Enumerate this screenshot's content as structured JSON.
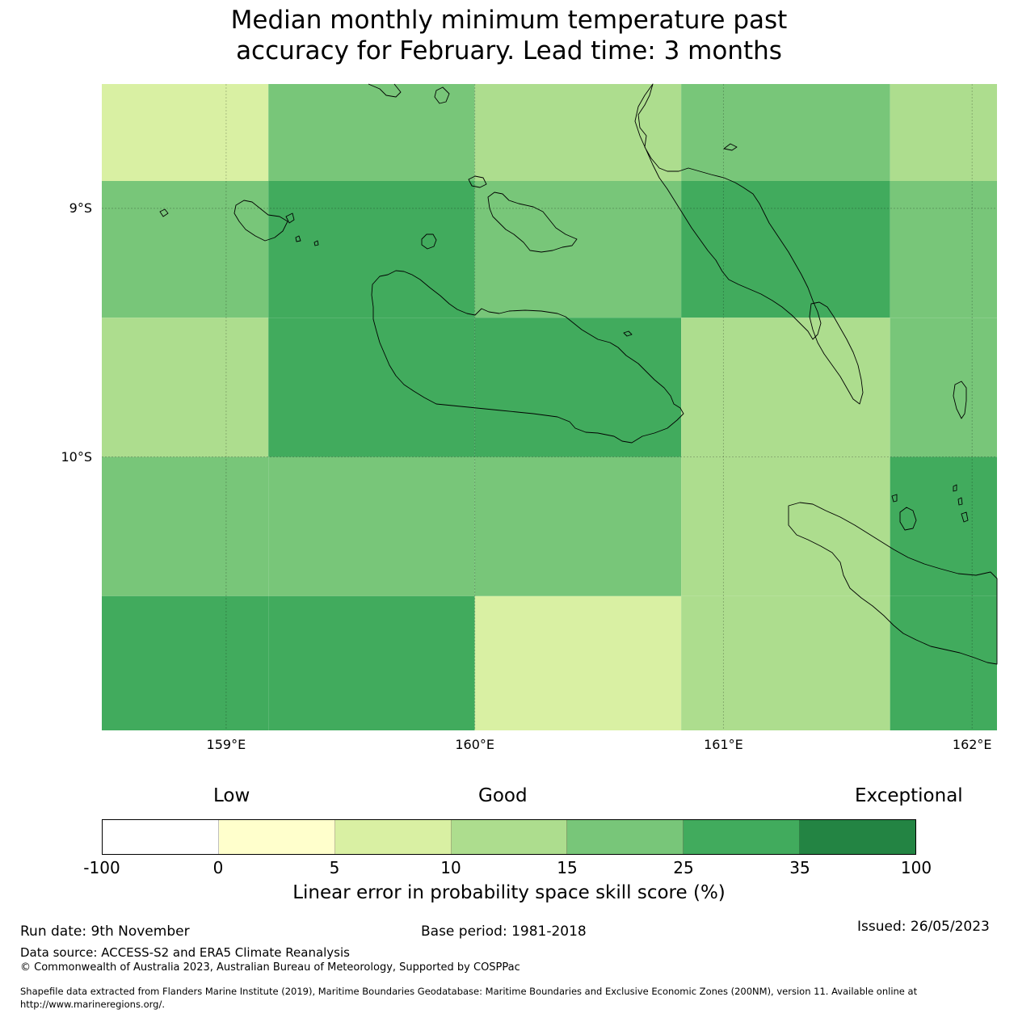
{
  "title_line1": "Median monthly minimum temperature past",
  "title_line2": "accuracy for February. Lead time: 3 months",
  "map": {
    "lon_range": [
      158.5,
      162.1
    ],
    "lat_range": [
      -8.5,
      -11.1
    ],
    "lon_ticks": [
      "159°E",
      "160°E",
      "161°E",
      "162°E"
    ],
    "lat_ticks": [
      "9°S",
      "10°S"
    ],
    "cells": [
      {
        "lon": [
          158.5,
          159.17
        ],
        "lat": [
          -8.5,
          -8.89
        ],
        "color": "#d9f0a3"
      },
      {
        "lon": [
          159.17,
          160.0
        ],
        "lat": [
          -8.5,
          -8.89
        ],
        "color": "#78c679"
      },
      {
        "lon": [
          160.0,
          160.83
        ],
        "lat": [
          -8.5,
          -8.89
        ],
        "color": "#addd8e"
      },
      {
        "lon": [
          160.83,
          161.67
        ],
        "lat": [
          -8.5,
          -8.89
        ],
        "color": "#78c679"
      },
      {
        "lon": [
          161.67,
          162.1
        ],
        "lat": [
          -8.5,
          -8.89
        ],
        "color": "#addd8e"
      },
      {
        "lon": [
          158.5,
          159.17
        ],
        "lat": [
          -8.89,
          -9.44
        ],
        "color": "#78c679"
      },
      {
        "lon": [
          159.17,
          160.0
        ],
        "lat": [
          -8.89,
          -9.44
        ],
        "color": "#41ab5d"
      },
      {
        "lon": [
          160.0,
          160.83
        ],
        "lat": [
          -8.89,
          -9.44
        ],
        "color": "#78c679"
      },
      {
        "lon": [
          160.83,
          161.67
        ],
        "lat": [
          -8.89,
          -9.44
        ],
        "color": "#41ab5d"
      },
      {
        "lon": [
          161.67,
          162.1
        ],
        "lat": [
          -8.89,
          -9.44
        ],
        "color": "#78c679"
      },
      {
        "lon": [
          158.5,
          159.17
        ],
        "lat": [
          -9.44,
          -10.0
        ],
        "color": "#addd8e"
      },
      {
        "lon": [
          159.17,
          160.0
        ],
        "lat": [
          -9.44,
          -10.0
        ],
        "color": "#41ab5d"
      },
      {
        "lon": [
          160.0,
          160.83
        ],
        "lat": [
          -9.44,
          -10.0
        ],
        "color": "#41ab5d"
      },
      {
        "lon": [
          160.83,
          161.67
        ],
        "lat": [
          -9.44,
          -10.0
        ],
        "color": "#addd8e"
      },
      {
        "lon": [
          161.67,
          162.1
        ],
        "lat": [
          -9.44,
          -10.0
        ],
        "color": "#78c679"
      },
      {
        "lon": [
          158.5,
          159.17
        ],
        "lat": [
          -10.0,
          -10.56
        ],
        "color": "#78c679"
      },
      {
        "lon": [
          159.17,
          160.0
        ],
        "lat": [
          -10.0,
          -10.56
        ],
        "color": "#78c679"
      },
      {
        "lon": [
          160.0,
          160.83
        ],
        "lat": [
          -10.0,
          -10.56
        ],
        "color": "#78c679"
      },
      {
        "lon": [
          160.83,
          161.67
        ],
        "lat": [
          -10.0,
          -10.56
        ],
        "color": "#addd8e"
      },
      {
        "lon": [
          161.67,
          162.1
        ],
        "lat": [
          -10.0,
          -10.56
        ],
        "color": "#41ab5d"
      },
      {
        "lon": [
          158.5,
          159.17
        ],
        "lat": [
          -10.56,
          -11.1
        ],
        "color": "#41ab5d"
      },
      {
        "lon": [
          159.17,
          160.0
        ],
        "lat": [
          -10.56,
          -11.1
        ],
        "color": "#41ab5d"
      },
      {
        "lon": [
          160.0,
          160.83
        ],
        "lat": [
          -10.56,
          -11.1
        ],
        "color": "#d9f0a3"
      },
      {
        "lon": [
          160.83,
          161.67
        ],
        "lat": [
          -10.56,
          -11.1
        ],
        "color": "#addd8e"
      },
      {
        "lon": [
          161.67,
          162.1
        ],
        "lat": [
          -10.56,
          -11.1
        ],
        "color": "#41ab5d"
      }
    ]
  },
  "colorbar": {
    "categories": [
      "Low",
      "Good",
      "Exceptional"
    ],
    "ticks": [
      "-100",
      "0",
      "5",
      "10",
      "15",
      "25",
      "35",
      "100"
    ],
    "colors": [
      "#ffffff",
      "#ffffcc",
      "#d9f0a3",
      "#addd8e",
      "#78c679",
      "#41ab5d",
      "#238443"
    ],
    "label": "Linear error in probability space skill score (%)"
  },
  "footer": {
    "run_date": "Run date: 9th November",
    "base_period": "Base period: 1981-2018",
    "issued": "Issued: 26/05/2023",
    "data_source": "Data source: ACCESS-S2 and ERA5 Climate Reanalysis",
    "copyright": "© Commonwealth of Australia 2023, Australian Bureau of Meteorology, Supported by COSPPac",
    "shapefile_line1": "Shapefile data extracted from Flanders Marine Institute (2019), Maritime Boundaries Geodatabase: Maritime Boundaries and Exclusive Economic Zones (200NM), version 11. Available online at",
    "shapefile_line2": "http://www.marineregions.org/."
  }
}
